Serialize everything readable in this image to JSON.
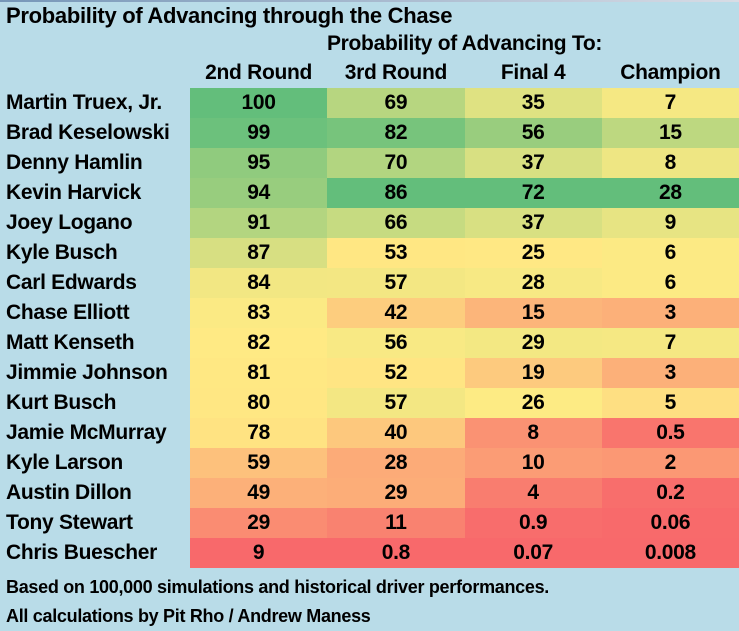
{
  "title": "Probability of Advancing through the Chase",
  "subtitle": "Probability of Advancing To:",
  "footer": {
    "line1": "Based on 100,000 simulations and historical driver performances.",
    "line2": "All calculations by Pit Rho / Andrew Maness"
  },
  "colors": {
    "page_background": "#B9DCE8",
    "text": "#000000",
    "scale_low_red": "#F8696B",
    "scale_mid_yellow": "#FFEB84",
    "scale_high_green": "#63BE7B"
  },
  "chart_data": {
    "type": "heatmap",
    "title": "Probability of Advancing through the Chase",
    "subtitle": "Probability of Advancing To:",
    "columns": [
      "2nd Round",
      "3rd Round",
      "Final 4",
      "Champion"
    ],
    "rows": [
      {
        "driver": "Martin Truex, Jr.",
        "values": [
          100,
          69,
          35,
          7
        ]
      },
      {
        "driver": "Brad Keselowski",
        "values": [
          99,
          82,
          56,
          15
        ]
      },
      {
        "driver": "Denny Hamlin",
        "values": [
          95,
          70,
          37,
          8
        ]
      },
      {
        "driver": "Kevin Harvick",
        "values": [
          94,
          86,
          72,
          28
        ]
      },
      {
        "driver": "Joey Logano",
        "values": [
          91,
          66,
          37,
          9
        ]
      },
      {
        "driver": "Kyle Busch",
        "values": [
          87,
          53,
          25,
          6
        ]
      },
      {
        "driver": "Carl Edwards",
        "values": [
          84,
          57,
          28,
          6
        ]
      },
      {
        "driver": "Chase Elliott",
        "values": [
          83,
          42,
          15,
          3
        ]
      },
      {
        "driver": "Matt Kenseth",
        "values": [
          82,
          56,
          29,
          7
        ]
      },
      {
        "driver": "Jimmie Johnson",
        "values": [
          81,
          52,
          19,
          3
        ]
      },
      {
        "driver": "Kurt Busch",
        "values": [
          80,
          57,
          26,
          5
        ]
      },
      {
        "driver": "Jamie McMurray",
        "values": [
          78,
          40,
          8,
          0.5
        ]
      },
      {
        "driver": "Kyle Larson",
        "values": [
          59,
          28,
          10,
          2
        ]
      },
      {
        "driver": "Austin Dillon",
        "values": [
          49,
          29,
          4,
          0.2
        ]
      },
      {
        "driver": "Tony Stewart",
        "values": [
          29,
          11,
          0.9,
          0.06
        ]
      },
      {
        "driver": "Chris Buescher",
        "values": [
          9,
          0.8,
          0.07,
          0.008
        ]
      }
    ],
    "color_scale": {
      "style": "excel-3-color-scale",
      "applied_per": "column",
      "low_color": "#F8696B",
      "mid_color": "#FFEB84",
      "high_color": "#63BE7B",
      "low_anchor": "column minimum",
      "mid_anchor": "column 50th percentile",
      "high_anchor": "column maximum"
    },
    "legend_position": "none",
    "grid": false
  }
}
